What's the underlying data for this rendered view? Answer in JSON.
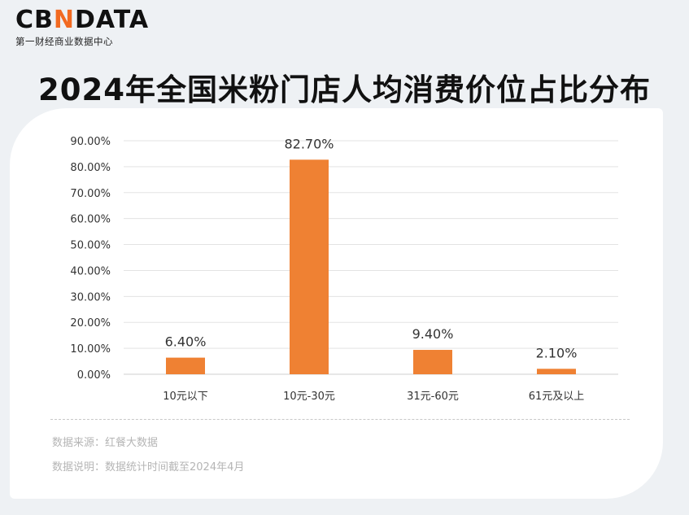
{
  "brand": {
    "logo_left": "CB",
    "logo_accent": "N",
    "logo_right": "DATA",
    "subtitle": "第一财经商业数据中心"
  },
  "title": "2024年全国米粉门店人均消费价位占比分布",
  "footer": {
    "source": "数据来源：红餐大数据",
    "note": "数据说明：数据统计时间截至2024年4月"
  },
  "colors": {
    "bar": "#ef8133",
    "accent": "#f26a21",
    "grid": "#e3e3e3"
  },
  "chart_data": {
    "type": "bar",
    "categories": [
      "10元以下",
      "10元-30元",
      "31元-60元",
      "61元及以上"
    ],
    "values": [
      6.4,
      82.7,
      9.4,
      2.1
    ],
    "value_labels": [
      "6.40%",
      "82.70%",
      "9.40%",
      "2.10%"
    ],
    "ylim": [
      0,
      90
    ],
    "y_ticks": [
      0,
      10,
      20,
      30,
      40,
      50,
      60,
      70,
      80,
      90
    ],
    "y_tick_labels": [
      "0.00%",
      "10.00%",
      "20.00%",
      "30.00%",
      "40.00%",
      "50.00%",
      "60.00%",
      "70.00%",
      "80.00%",
      "90.00%"
    ],
    "grid": true
  }
}
